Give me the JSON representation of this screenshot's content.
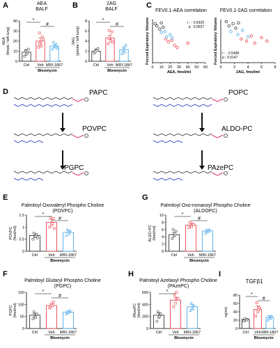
{
  "panel_letters": {
    "A": "A",
    "B": "B",
    "C": "C",
    "D": "D",
    "E": "E",
    "F": "F",
    "G": "G",
    "H": "H",
    "I": "I"
  },
  "panel_titles": {
    "A": "AEA\nBALF",
    "B": "2AG\nBALF",
    "C1": "FEV0.1-AEA correlation",
    "C2": "FEV0.1-2AG correlation",
    "E": "Palmitoyl Oxovaleryl Phospho Choline\n(POVPC)",
    "F": "Palmitoyl Glutaryl Phospho Choline\n(PGPC)",
    "G": "Palmitoyl Oxo-nonanoyl Phospho Choline\n(ALDOPC)",
    "H": "Palmitoyl Azelaoyl Phospho Choline\n(PAzePC)",
    "I": "TGFβ1"
  },
  "pathway": {
    "left": [
      "PAPC",
      "POVPC",
      "PGPC"
    ],
    "right": [
      "POPC",
      "ALDO-PC",
      "PAzePC"
    ]
  },
  "colors": {
    "ctrl": "#333333",
    "veh": "#e8404a",
    "mri": "#4aa8e8",
    "arrow": "#111111",
    "chain_blue": "#4455cc",
    "chain_pink": "#d9336b"
  },
  "chart_data": [
    {
      "id": "A",
      "type": "bar",
      "title": "AEA BALF",
      "ylabel": "AEA\n(fmole / left lung)",
      "ylim": [
        0,
        40
      ],
      "yticks": [
        0,
        10,
        20,
        30,
        40
      ],
      "categories": [
        "Ctrl",
        "Veh",
        "MRI-1867"
      ],
      "group_label": "Bleomycin",
      "values": [
        9,
        20,
        15
      ],
      "errors": [
        2.5,
        3,
        2
      ],
      "points": [
        [
          5,
          7,
          12,
          10,
          8
        ],
        [
          14,
          18,
          24,
          28,
          15,
          22,
          17
        ],
        [
          12,
          14,
          17,
          19,
          15,
          13
        ]
      ],
      "sig": [
        {
          "from": 0,
          "to": 1,
          "label": "*"
        },
        {
          "from": 1,
          "to": 2,
          "label": "#"
        }
      ]
    },
    {
      "id": "B",
      "type": "bar",
      "title": "2AG BALF",
      "ylabel": "2AG\n(pmole / left lung)",
      "ylim": [
        0,
        8
      ],
      "yticks": [
        0,
        2,
        4,
        6,
        8
      ],
      "categories": [
        "Ctrl",
        "Veh",
        "MRI-1867"
      ],
      "group_label": "Bleomycin",
      "values": [
        2.0,
        4.6,
        2.3
      ],
      "errors": [
        0.4,
        0.6,
        0.5
      ],
      "points": [
        [
          1.6,
          2.2,
          2.5,
          1.9,
          2.1
        ],
        [
          3.5,
          4.5,
          5.8,
          6.1,
          4,
          3.8,
          4.6
        ],
        [
          1.5,
          2.7,
          3.2,
          2,
          1.8
        ]
      ],
      "sig": [
        {
          "from": 0,
          "to": 1,
          "label": "*"
        },
        {
          "from": 1,
          "to": 2,
          "label": "#"
        }
      ]
    },
    {
      "id": "C1",
      "type": "scatter",
      "title": "FEV0.1-AEA correlation",
      "xlabel": "AEA, fmol/ml",
      "ylabel": "Forced Expiratory Volume",
      "xlim": [
        0,
        60
      ],
      "xticks": [
        0,
        10,
        20,
        30,
        40,
        50,
        60
      ],
      "annotation": [
        "r : - 0.6329",
        "p : 0.0037"
      ],
      "series": [
        {
          "group": "ctrl",
          "x": [
            3,
            5,
            8,
            10,
            12
          ],
          "y": [
            0.9,
            0.85,
            0.78,
            0.92,
            0.82
          ]
        },
        {
          "group": "veh",
          "x": [
            15,
            18,
            22,
            25,
            28,
            40
          ],
          "y": [
            0.55,
            0.48,
            0.52,
            0.4,
            0.35,
            0.45
          ]
        },
        {
          "group": "mri",
          "x": [
            10,
            14,
            16,
            20,
            22
          ],
          "y": [
            0.7,
            0.72,
            0.6,
            0.65,
            0.58
          ]
        }
      ]
    },
    {
      "id": "C2",
      "type": "scatter",
      "title": "FEV0.1-2AG correlation",
      "xlabel": "2AG, fmol/ml",
      "ylabel": "Forced Expiratory Volume",
      "xlim": [
        0,
        8
      ],
      "xticks": [
        0,
        2,
        4,
        6,
        8
      ],
      "annotation": [
        "r : - 0.5498",
        "p : 0.0147"
      ],
      "series": [
        {
          "group": "ctrl",
          "x": [
            0.8,
            1.2,
            1.8,
            2.2,
            2.6
          ],
          "y": [
            0.95,
            0.85,
            0.9,
            0.8,
            0.92
          ]
        },
        {
          "group": "veh",
          "x": [
            3,
            3.8,
            4.5,
            5,
            6,
            6.8
          ],
          "y": [
            0.55,
            0.5,
            0.62,
            0.45,
            0.58,
            0.5
          ]
        },
        {
          "group": "mri",
          "x": [
            1.5,
            2.5,
            3.2,
            4
          ],
          "y": [
            0.72,
            0.65,
            0.75,
            0.6
          ]
        }
      ]
    },
    {
      "id": "E",
      "type": "bar",
      "ylabel": "POVPC\n(fmol/ml)",
      "ylim": [
        0,
        1.5
      ],
      "yticks": [
        0.0,
        0.5,
        1.0,
        1.5
      ],
      "categories": [
        "Ctrl",
        "Veh",
        "MRI-1867"
      ],
      "group_label": "Bleomycin",
      "values": [
        0.65,
        1.2,
        0.78
      ],
      "errors": [
        0.08,
        0.12,
        0.08
      ],
      "points": [
        [
          0.5,
          0.6,
          0.7,
          0.75,
          0.62,
          0.55
        ],
        [
          1.0,
          1.1,
          1.35,
          1.4,
          1.15,
          0.95
        ],
        [
          0.65,
          0.8,
          0.85,
          0.9,
          0.72
        ]
      ],
      "sig": [
        {
          "from": 0,
          "to": 1,
          "label": "*"
        },
        {
          "from": 1,
          "to": 2,
          "label": "#"
        }
      ]
    },
    {
      "id": "F",
      "type": "bar",
      "ylabel": "PGPC\n(fmol/ml)",
      "ylim": [
        0,
        150
      ],
      "yticks": [
        0,
        50,
        100,
        150
      ],
      "categories": [
        "Ctrl",
        "Veh",
        "MRI-1867"
      ],
      "group_label": "Bleomycin",
      "values": [
        55,
        95,
        68
      ],
      "errors": [
        8,
        8,
        5
      ],
      "points": [
        [
          40,
          50,
          60,
          70,
          45
        ],
        [
          85,
          100,
          110,
          90,
          95
        ],
        [
          60,
          65,
          75,
          70,
          68
        ]
      ],
      "sig": [
        {
          "from": 0,
          "to": 1,
          "label": "*"
        },
        {
          "from": 1,
          "to": 2,
          "label": "#"
        }
      ]
    },
    {
      "id": "G",
      "type": "bar",
      "ylabel": "ALDO-PC\n(fmol/ml)",
      "ylim": [
        0,
        10
      ],
      "yticks": [
        0,
        2,
        4,
        6,
        8,
        10
      ],
      "categories": [
        "Ctrl",
        "Veh",
        "MRI-1867"
      ],
      "group_label": "Bleomycin",
      "values": [
        4.6,
        7.2,
        5.6
      ],
      "errors": [
        0.6,
        0.5,
        0.4
      ],
      "points": [
        [
          3.5,
          4.2,
          5.5,
          6,
          4.5
        ],
        [
          6.5,
          7,
          7.5,
          8,
          6.8,
          7.4
        ],
        [
          5,
          5.5,
          6,
          5.8,
          5.4
        ]
      ],
      "sig": [
        {
          "from": 0,
          "to": 1,
          "label": "*"
        },
        {
          "from": 1,
          "to": 2,
          "label": "#"
        }
      ]
    },
    {
      "id": "H",
      "type": "bar",
      "ylabel": "PAzePC\n(fmol/ml)",
      "ylim": [
        0,
        600
      ],
      "yticks": [
        0,
        200,
        400,
        600
      ],
      "categories": [
        "Ctrl",
        "Veh",
        "MRI-1867"
      ],
      "group_label": "Bleomycin",
      "values": [
        220,
        470,
        360
      ],
      "errors": [
        40,
        50,
        40
      ],
      "points": [
        [
          120,
          180,
          240,
          280,
          200
        ],
        [
          360,
          420,
          500,
          560,
          600,
          480
        ],
        [
          300,
          340,
          380,
          420,
          320
        ]
      ],
      "sig": [
        {
          "from": 0,
          "to": 1,
          "label": "*"
        }
      ]
    },
    {
      "id": "I",
      "type": "bar",
      "title": "TGFβ1",
      "ylabel": "ng/mL",
      "ylim": [
        0,
        80
      ],
      "yticks": [
        0,
        20,
        40,
        60,
        80
      ],
      "categories": [
        "Ctrl",
        "Veh",
        "MRI-1867"
      ],
      "group_label": "Bleomycin",
      "values": [
        22,
        46,
        27
      ],
      "errors": [
        2,
        8,
        4
      ],
      "points": [
        [
          18,
          20,
          22,
          24,
          20
        ],
        [
          30,
          40,
          50,
          62,
          45
        ],
        [
          20,
          25,
          30,
          28,
          24
        ]
      ],
      "sig": [
        {
          "from": 0,
          "to": 1,
          "label": "*"
        },
        {
          "from": 1,
          "to": 2,
          "label": "#"
        }
      ]
    }
  ]
}
